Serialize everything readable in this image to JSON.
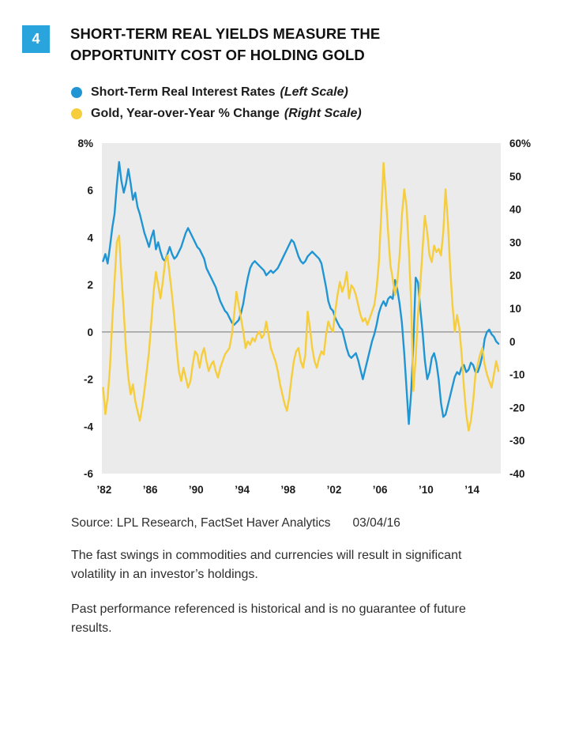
{
  "figure": {
    "number": "4",
    "badge_color": "#29a4dd",
    "title_line1": "SHORT-TERM REAL YIELDS MEASURE THE",
    "title_line2": "OPPORTUNITY COST OF HOLDING GOLD"
  },
  "legend": {
    "items": [
      {
        "label": "Short-Term Real Interest Rates",
        "note": "(Left Scale)",
        "color": "#2095d3"
      },
      {
        "label": "Gold, Year-over-Year % Change",
        "note": "(Right Scale)",
        "color": "#f6cd3c"
      }
    ]
  },
  "source": {
    "label": "Source: LPL Research, FactSet Haver Analytics",
    "date": "03/04/16"
  },
  "notes": [
    "The fast swings in commodities and currencies will result in significant volatility in an investor’s holdings.",
    "Past performance referenced is historical and is no guarantee of future results."
  ],
  "chart_data": {
    "type": "line",
    "title": "Short-Term Real Yields Measure the Opportunity Cost of Holding Gold",
    "plot_bg": "#ebebeb",
    "zero_line_color": "#8c8c8c",
    "grid": false,
    "legend_position": "top-left",
    "x_range": [
      1981.8,
      2016.5
    ],
    "x_start": 1981.9,
    "x_step": 0.2,
    "x_ticks": {
      "years": [
        1982,
        1986,
        1990,
        1994,
        1998,
        2002,
        2006,
        2010,
        2014
      ],
      "labels": [
        "’82",
        "’86",
        "’90",
        "’94",
        "’98",
        "’02",
        "’06",
        "’10",
        "’14"
      ]
    },
    "left_axis": {
      "label": "Short-Term Real Interest Rates (%)",
      "range": [
        8,
        -6
      ],
      "ticks": [
        8,
        6,
        4,
        2,
        0,
        -2,
        -4,
        -6
      ],
      "labels": [
        "8%",
        "6",
        "4",
        "2",
        "0",
        "-2",
        "-4",
        "-6"
      ]
    },
    "right_axis": {
      "label": "Gold Year-over-Year % Change",
      "range": [
        60,
        -40
      ],
      "ticks": [
        60,
        50,
        40,
        30,
        20,
        10,
        0,
        -10,
        -20,
        -30,
        -40
      ],
      "labels": [
        "60%",
        "50",
        "40",
        "30",
        "20",
        "10",
        "0",
        "-10",
        "-20",
        "-30",
        "-40"
      ]
    },
    "series": [
      {
        "name": "Short-Term Real Interest Rates",
        "scale": "left",
        "color": "#2095d3",
        "y": [
          3.0,
          3.3,
          2.9,
          3.6,
          4.4,
          5.0,
          6.2,
          7.2,
          6.4,
          5.9,
          6.3,
          6.9,
          6.3,
          5.6,
          5.9,
          5.3,
          5.0,
          4.6,
          4.2,
          3.9,
          3.6,
          4.0,
          4.3,
          3.5,
          3.8,
          3.4,
          3.1,
          3.0,
          3.3,
          3.6,
          3.3,
          3.1,
          3.2,
          3.4,
          3.6,
          3.9,
          4.2,
          4.4,
          4.2,
          4.0,
          3.8,
          3.6,
          3.5,
          3.3,
          3.1,
          2.7,
          2.5,
          2.3,
          2.1,
          1.9,
          1.6,
          1.3,
          1.1,
          0.9,
          0.8,
          0.6,
          0.4,
          0.3,
          0.4,
          0.5,
          0.8,
          1.2,
          1.8,
          2.3,
          2.7,
          2.9,
          3.0,
          2.9,
          2.8,
          2.7,
          2.6,
          2.4,
          2.5,
          2.6,
          2.5,
          2.6,
          2.7,
          2.9,
          3.1,
          3.3,
          3.5,
          3.7,
          3.9,
          3.8,
          3.5,
          3.2,
          3.0,
          2.9,
          3.0,
          3.2,
          3.3,
          3.4,
          3.3,
          3.2,
          3.1,
          2.9,
          2.4,
          1.9,
          1.3,
          1.0,
          0.9,
          0.6,
          0.4,
          0.2,
          0.1,
          -0.3,
          -0.7,
          -1.0,
          -1.1,
          -1.0,
          -0.9,
          -1.2,
          -1.6,
          -2.0,
          -1.6,
          -1.2,
          -0.8,
          -0.4,
          -0.1,
          0.3,
          0.8,
          1.1,
          1.3,
          1.1,
          1.4,
          1.5,
          1.4,
          2.2,
          1.8,
          1.2,
          0.4,
          -0.9,
          -2.4,
          -3.9,
          -2.6,
          -0.5,
          2.3,
          2.1,
          1.0,
          0.0,
          -1.2,
          -2.0,
          -1.7,
          -1.1,
          -0.9,
          -1.3,
          -2.0,
          -3.0,
          -3.6,
          -3.5,
          -3.1,
          -2.7,
          -2.3,
          -1.9,
          -1.7,
          -1.8,
          -1.5,
          -1.4,
          -1.7,
          -1.6,
          -1.3,
          -1.4,
          -1.7,
          -1.7,
          -1.4,
          -1.0,
          -0.3,
          0.0,
          0.1,
          -0.1,
          -0.2,
          -0.4,
          -0.5
        ]
      },
      {
        "name": "Gold, Year-over-Year % Change",
        "scale": "right",
        "color": "#f6cd3c",
        "y": [
          -14,
          -22,
          -17,
          -8,
          6,
          18,
          30,
          32,
          20,
          9,
          -3,
          -11,
          -16,
          -13,
          -18,
          -21,
          -24,
          -20,
          -15,
          -9,
          -3,
          6,
          15,
          21,
          17,
          13,
          18,
          24,
          26,
          20,
          14,
          7,
          -2,
          -9,
          -12,
          -8,
          -11,
          -14,
          -12,
          -7,
          -3,
          -4,
          -8,
          -4,
          -2,
          -6,
          -9,
          -7,
          -6,
          -9,
          -11,
          -8,
          -6,
          -4,
          -3,
          -2,
          2,
          8,
          15,
          11,
          7,
          3,
          -2,
          0,
          -1,
          1,
          0,
          2,
          3,
          1,
          2,
          6,
          2,
          -2,
          -4,
          -6,
          -9,
          -13,
          -16,
          -19,
          -21,
          -17,
          -11,
          -6,
          -3,
          -2,
          -6,
          -8,
          -4,
          9,
          4,
          -2,
          -6,
          -8,
          -5,
          -3,
          -4,
          2,
          6,
          4,
          3,
          9,
          14,
          18,
          15,
          17,
          21,
          13,
          17,
          16,
          14,
          11,
          8,
          6,
          7,
          5,
          7,
          9,
          11,
          16,
          24,
          38,
          54,
          44,
          33,
          23,
          19,
          14,
          18,
          26,
          38,
          46,
          41,
          28,
          12,
          -15,
          -5,
          8,
          17,
          28,
          38,
          33,
          26,
          24,
          29,
          27,
          28,
          26,
          33,
          46,
          36,
          22,
          11,
          3,
          8,
          4,
          -4,
          -14,
          -22,
          -27,
          -24,
          -18,
          -10,
          -7,
          -4,
          -2,
          -7,
          -10,
          -12,
          -14,
          -10,
          -6,
          -9
        ]
      }
    ]
  }
}
